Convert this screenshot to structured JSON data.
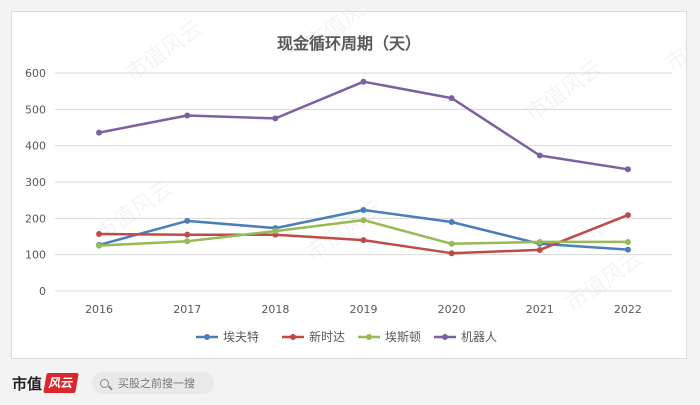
{
  "chart_data": {
    "type": "line",
    "title": "现金循环周期（天）",
    "categories": [
      "2016",
      "2017",
      "2018",
      "2019",
      "2020",
      "2021",
      "2022"
    ],
    "ylim": [
      0,
      600
    ],
    "yticks": [
      "0",
      "100",
      "200",
      "300",
      "400",
      "500",
      "600"
    ],
    "grid": true,
    "legend_position": "bottom",
    "series": [
      {
        "name": "埃夫特",
        "color": "#4a7ebb",
        "values": [
          127,
          193,
          173,
          223,
          190,
          130,
          114
        ]
      },
      {
        "name": "新时达",
        "color": "#be4b48",
        "values": [
          157,
          155,
          155,
          140,
          104,
          113,
          209
        ]
      },
      {
        "name": "埃斯顿",
        "color": "#98b954",
        "values": [
          125,
          137,
          165,
          195,
          130,
          135,
          135
        ]
      },
      {
        "name": "机器人",
        "color": "#7d60a0",
        "values": [
          436,
          483,
          475,
          576,
          531,
          373,
          335
        ]
      }
    ]
  },
  "watermark": "市值风云",
  "footer": {
    "brand": "市值",
    "brand_logo": "风云",
    "search_placeholder": "买股之前搜一搜"
  }
}
